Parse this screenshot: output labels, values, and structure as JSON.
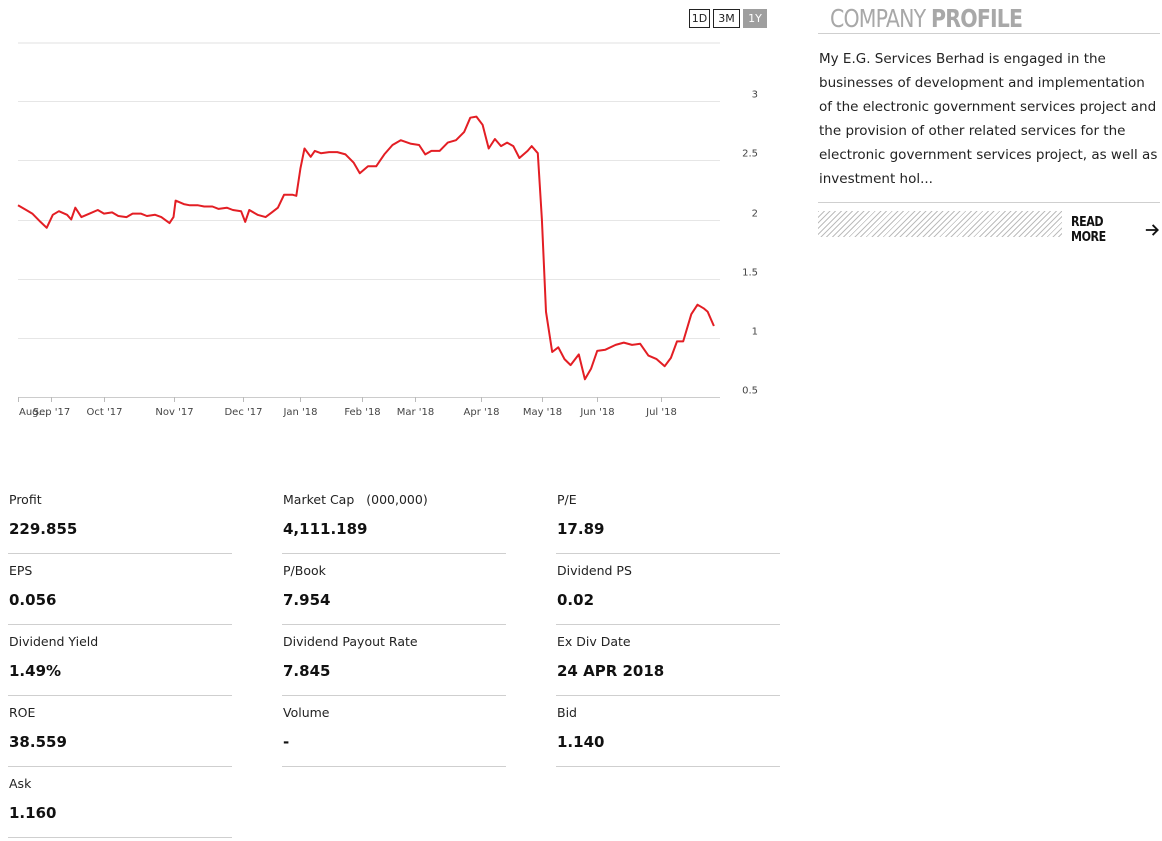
{
  "range_buttons": [
    {
      "label": "1D",
      "active": false
    },
    {
      "label": "3M",
      "active": false
    },
    {
      "label": "1Y",
      "active": true
    }
  ],
  "chart_data": {
    "type": "line",
    "series": [
      {
        "color": "#e31e24",
        "points": [
          [
            "2017-08-18",
            2.12
          ],
          [
            "2017-08-22",
            2.08
          ],
          [
            "2017-08-25",
            2.05
          ],
          [
            "2017-08-29",
            1.98
          ],
          [
            "2017-09-01",
            1.93
          ],
          [
            "2017-09-04",
            2.04
          ],
          [
            "2017-09-07",
            2.07
          ],
          [
            "2017-09-11",
            2.04
          ],
          [
            "2017-09-13",
            2.0
          ],
          [
            "2017-09-15",
            2.1
          ],
          [
            "2017-09-18",
            2.02
          ],
          [
            "2017-09-22",
            2.05
          ],
          [
            "2017-09-26",
            2.08
          ],
          [
            "2017-09-29",
            2.05
          ],
          [
            "2017-10-03",
            2.06
          ],
          [
            "2017-10-06",
            2.03
          ],
          [
            "2017-10-10",
            2.02
          ],
          [
            "2017-10-13",
            2.05
          ],
          [
            "2017-10-17",
            2.05
          ],
          [
            "2017-10-20",
            2.03
          ],
          [
            "2017-10-24",
            2.04
          ],
          [
            "2017-10-27",
            2.02
          ],
          [
            "2017-10-31",
            1.97
          ],
          [
            "2017-11-02",
            2.02
          ],
          [
            "2017-11-03",
            2.16
          ],
          [
            "2017-11-07",
            2.13
          ],
          [
            "2017-11-10",
            2.12
          ],
          [
            "2017-11-14",
            2.12
          ],
          [
            "2017-11-17",
            2.11
          ],
          [
            "2017-11-21",
            2.11
          ],
          [
            "2017-11-24",
            2.09
          ],
          [
            "2017-11-28",
            2.1
          ],
          [
            "2017-12-01",
            2.08
          ],
          [
            "2017-12-05",
            2.07
          ],
          [
            "2017-12-07",
            1.98
          ],
          [
            "2017-12-09",
            2.08
          ],
          [
            "2017-12-13",
            2.04
          ],
          [
            "2017-12-17",
            2.02
          ],
          [
            "2017-12-20",
            2.06
          ],
          [
            "2017-12-23",
            2.1
          ],
          [
            "2017-12-26",
            2.21
          ],
          [
            "2017-12-30",
            2.21
          ],
          [
            "2018-01-01",
            2.2
          ],
          [
            "2018-01-03",
            2.43
          ],
          [
            "2018-01-05",
            2.6
          ],
          [
            "2018-01-08",
            2.53
          ],
          [
            "2018-01-10",
            2.58
          ],
          [
            "2018-01-13",
            2.56
          ],
          [
            "2018-01-17",
            2.57
          ],
          [
            "2018-01-21",
            2.57
          ],
          [
            "2018-01-25",
            2.55
          ],
          [
            "2018-01-29",
            2.48
          ],
          [
            "2018-02-01",
            2.39
          ],
          [
            "2018-02-05",
            2.45
          ],
          [
            "2018-02-09",
            2.45
          ],
          [
            "2018-02-13",
            2.55
          ],
          [
            "2018-02-17",
            2.63
          ],
          [
            "2018-02-21",
            2.67
          ],
          [
            "2018-02-26",
            2.64
          ],
          [
            "2018-03-02",
            2.63
          ],
          [
            "2018-03-05",
            2.55
          ],
          [
            "2018-03-08",
            2.58
          ],
          [
            "2018-03-12",
            2.58
          ],
          [
            "2018-03-16",
            2.65
          ],
          [
            "2018-03-20",
            2.67
          ],
          [
            "2018-03-24",
            2.74
          ],
          [
            "2018-03-27",
            2.86
          ],
          [
            "2018-03-30",
            2.87
          ],
          [
            "2018-04-02",
            2.8
          ],
          [
            "2018-04-05",
            2.6
          ],
          [
            "2018-04-08",
            2.68
          ],
          [
            "2018-04-11",
            2.62
          ],
          [
            "2018-04-14",
            2.65
          ],
          [
            "2018-04-17",
            2.62
          ],
          [
            "2018-04-20",
            2.52
          ],
          [
            "2018-04-24",
            2.58
          ],
          [
            "2018-04-26",
            2.62
          ],
          [
            "2018-04-29",
            2.56
          ],
          [
            "2018-05-01",
            2.0
          ],
          [
            "2018-05-03",
            1.22
          ],
          [
            "2018-05-06",
            0.88
          ],
          [
            "2018-05-09",
            0.92
          ],
          [
            "2018-05-12",
            0.82
          ],
          [
            "2018-05-15",
            0.77
          ],
          [
            "2018-05-19",
            0.86
          ],
          [
            "2018-05-22",
            0.65
          ],
          [
            "2018-05-25",
            0.74
          ],
          [
            "2018-05-28",
            0.89
          ],
          [
            "2018-06-01",
            0.9
          ],
          [
            "2018-06-06",
            0.94
          ],
          [
            "2018-06-10",
            0.96
          ],
          [
            "2018-06-14",
            0.94
          ],
          [
            "2018-06-18",
            0.95
          ],
          [
            "2018-06-22",
            0.85
          ],
          [
            "2018-06-26",
            0.82
          ],
          [
            "2018-06-30",
            0.76
          ],
          [
            "2018-07-03",
            0.83
          ],
          [
            "2018-07-06",
            0.97
          ],
          [
            "2018-07-09",
            0.97
          ],
          [
            "2018-07-13",
            1.2
          ],
          [
            "2018-07-16",
            1.28
          ],
          [
            "2018-07-19",
            1.25
          ],
          [
            "2018-07-21",
            1.22
          ],
          [
            "2018-07-24",
            1.1
          ]
        ]
      }
    ],
    "y_ticks": [
      0.5,
      1,
      1.5,
      2,
      2.5,
      3
    ],
    "ylim": [
      0.5,
      3.5
    ],
    "y_tick_labels": [
      "0.5",
      "1",
      "1.5",
      "2",
      "2.5",
      "3"
    ],
    "x_ticks": [
      {
        "date": "2017-08-18",
        "label": "Aug..."
      },
      {
        "date": "2017-09-03",
        "label": "Sep '17"
      },
      {
        "date": "2017-09-29",
        "label": "Oct '17"
      },
      {
        "date": "2017-11-02",
        "label": "Nov '17"
      },
      {
        "date": "2017-12-06",
        "label": "Dec '17"
      },
      {
        "date": "2018-01-03",
        "label": "Jan '18"
      },
      {
        "date": "2018-02-02",
        "label": "Feb '18"
      },
      {
        "date": "2018-02-28",
        "label": "Mar '18"
      },
      {
        "date": "2018-04-01",
        "label": "Apr '18"
      },
      {
        "date": "2018-05-01",
        "label": "May '18"
      },
      {
        "date": "2018-05-28",
        "label": "Jun '18"
      },
      {
        "date": "2018-06-28",
        "label": "Jul '18"
      }
    ],
    "xlim": [
      "2017-08-18",
      "2018-07-27"
    ],
    "grid": true
  },
  "profile": {
    "title_light": "COMPANY",
    "title_bold": "PROFILE",
    "description": "My E.G. Services Berhad is engaged in the businesses of development and implementation of the electronic government services project and the provision of other related services for the electronic government services project, as well as investment hol...",
    "read_more": "READ MORE",
    "arrow_icon": "arrow-right-icon"
  },
  "stats": [
    {
      "label": "Profit",
      "value": "229.855"
    },
    {
      "label": "Market Cap",
      "unit": "(000,000)",
      "value": "4,111.189"
    },
    {
      "label": "P/E",
      "value": "17.89"
    },
    {
      "label": "EPS",
      "value": "0.056"
    },
    {
      "label": "P/Book",
      "value": "7.954"
    },
    {
      "label": "Dividend PS",
      "value": "0.02"
    },
    {
      "label": "Dividend Yield",
      "value": "1.49%"
    },
    {
      "label": "Dividend Payout Rate",
      "value": "7.845"
    },
    {
      "label": "Ex Div Date",
      "value": "24 APR 2018"
    },
    {
      "label": "ROE",
      "value": "38.559"
    },
    {
      "label": "Volume",
      "value": "-"
    },
    {
      "label": "Bid",
      "value": "1.140"
    },
    {
      "label": "Ask",
      "value": "1.160"
    }
  ]
}
